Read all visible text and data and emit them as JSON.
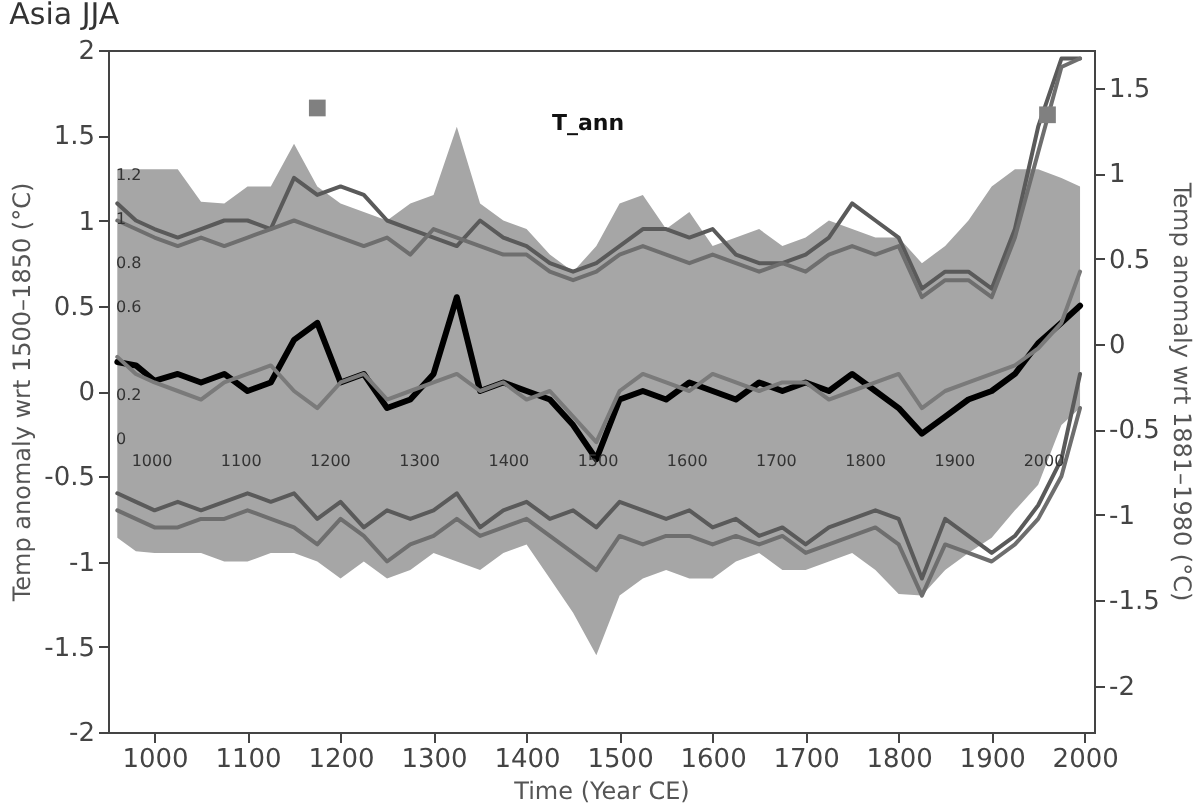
{
  "chart_data": {
    "type": "line",
    "title": "Asia JJA",
    "xlabel": "Time (Year CE)",
    "ylabel": "Temp anomaly wrt 1500–1850 (°C)",
    "y2label": "Temp anomaly wrt 1881–1980 (°C)",
    "xlim": [
      950,
      2010
    ],
    "ylim": [
      -2,
      2
    ],
    "y2lim": [
      -2.27,
      1.72
    ],
    "xticks": [
      1000,
      1100,
      1200,
      1300,
      1400,
      1500,
      1600,
      1700,
      1800,
      1900,
      2000
    ],
    "yticks": [
      -2,
      -1.5,
      -1,
      -0.5,
      0,
      0.5,
      1,
      1.5,
      2
    ],
    "y2ticks": [
      -2,
      -1.5,
      -1,
      -0.5,
      0,
      0.5,
      1,
      1.5
    ],
    "grid": false,
    "line_style": "solid",
    "x": [
      960,
      980,
      1000,
      1025,
      1050,
      1075,
      1100,
      1125,
      1150,
      1175,
      1200,
      1225,
      1250,
      1275,
      1300,
      1325,
      1350,
      1375,
      1400,
      1425,
      1450,
      1475,
      1500,
      1525,
      1550,
      1575,
      1600,
      1625,
      1650,
      1675,
      1700,
      1725,
      1750,
      1775,
      1800,
      1825,
      1850,
      1875,
      1900,
      1925,
      1950,
      1975,
      1995
    ],
    "series": [
      {
        "color": "#000000",
        "values": [
          0.17,
          0.15,
          0.06,
          0.1,
          0.05,
          0.1,
          0.0,
          0.05,
          0.3,
          0.4,
          0.05,
          0.1,
          -0.1,
          -0.05,
          0.1,
          0.55,
          0.0,
          0.05,
          0.0,
          -0.05,
          -0.2,
          -0.4,
          -0.05,
          0.0,
          -0.05,
          0.05,
          0.0,
          -0.05,
          0.05,
          0.0,
          0.05,
          0.0,
          0.1,
          0.0,
          -0.1,
          -0.25,
          -0.15,
          -0.05,
          0.0,
          0.1,
          0.28,
          0.4,
          0.5
        ],
        "upper": [
          1.3,
          1.3,
          1.3,
          1.3,
          1.11,
          1.1,
          1.2,
          1.2,
          1.45,
          1.2,
          1.1,
          1.05,
          1.0,
          1.1,
          1.15,
          1.55,
          1.1,
          1.0,
          0.95,
          0.8,
          0.7,
          0.85,
          1.1,
          1.15,
          0.95,
          1.05,
          0.85,
          0.9,
          0.95,
          0.85,
          0.9,
          1.0,
          0.95,
          0.9,
          0.9,
          0.75,
          0.85,
          1.0,
          1.2,
          1.3,
          1.3,
          1.25,
          1.2
        ],
        "lower": [
          -0.86,
          -0.94,
          -0.95,
          -0.95,
          -0.95,
          -1.0,
          -1.0,
          -0.95,
          -0.95,
          -1.0,
          -1.1,
          -1.0,
          -1.1,
          -1.05,
          -0.95,
          -1.0,
          -1.05,
          -0.95,
          -0.9,
          -1.1,
          -1.3,
          -1.55,
          -1.2,
          -1.1,
          -1.05,
          -1.1,
          -1.1,
          -1.0,
          -0.95,
          -1.05,
          -1.05,
          -1.0,
          -0.95,
          -1.05,
          -1.19,
          -1.2,
          -1.05,
          -0.95,
          -0.86,
          -0.7,
          -0.55,
          -0.2,
          -0.1
        ]
      },
      {
        "color": "#5a5a5a",
        "values": [
          1.1,
          1.0,
          0.95,
          0.9,
          0.95,
          1.0,
          1.0,
          0.95,
          1.25,
          1.15,
          1.2,
          1.15,
          1.0,
          0.95,
          0.9,
          0.85,
          1.0,
          0.9,
          0.85,
          0.75,
          0.7,
          0.75,
          0.85,
          0.95,
          0.95,
          0.9,
          0.95,
          0.8,
          0.75,
          0.75,
          0.8,
          0.9,
          1.1,
          1.0,
          0.9,
          0.6,
          0.7,
          0.7,
          0.6,
          0.95,
          1.55,
          1.95,
          1.95
        ]
      },
      {
        "color": "#6e6e6e",
        "values": [
          1.0,
          0.95,
          0.9,
          0.85,
          0.9,
          0.85,
          0.9,
          0.95,
          1.0,
          0.95,
          0.9,
          0.85,
          0.9,
          0.8,
          0.95,
          0.9,
          0.85,
          0.8,
          0.8,
          0.7,
          0.65,
          0.7,
          0.8,
          0.85,
          0.8,
          0.75,
          0.8,
          0.75,
          0.7,
          0.75,
          0.7,
          0.8,
          0.85,
          0.8,
          0.85,
          0.55,
          0.65,
          0.65,
          0.55,
          0.9,
          1.4,
          1.9,
          1.95
        ]
      },
      {
        "color": "#5a5a5a",
        "values": [
          -0.6,
          -0.65,
          -0.7,
          -0.65,
          -0.7,
          -0.65,
          -0.6,
          -0.65,
          -0.6,
          -0.75,
          -0.65,
          -0.8,
          -0.7,
          -0.75,
          -0.7,
          -0.6,
          -0.8,
          -0.7,
          -0.65,
          -0.75,
          -0.7,
          -0.8,
          -0.65,
          -0.7,
          -0.75,
          -0.7,
          -0.8,
          -0.75,
          -0.85,
          -0.8,
          -0.9,
          -0.8,
          -0.75,
          -0.7,
          -0.75,
          -1.1,
          -0.75,
          -0.85,
          -0.95,
          -0.85,
          -0.67,
          -0.4,
          0.1
        ]
      },
      {
        "color": "#6e6e6e",
        "values": [
          -0.7,
          -0.75,
          -0.8,
          -0.8,
          -0.75,
          -0.75,
          -0.7,
          -0.75,
          -0.8,
          -0.9,
          -0.75,
          -0.85,
          -1.0,
          -0.9,
          -0.85,
          -0.75,
          -0.85,
          -0.8,
          -0.75,
          -0.85,
          -0.95,
          -1.05,
          -0.85,
          -0.9,
          -0.85,
          -0.85,
          -0.9,
          -0.85,
          -0.9,
          -0.85,
          -0.95,
          -0.9,
          -0.85,
          -0.8,
          -0.9,
          -1.2,
          -0.9,
          -0.95,
          -1.0,
          -0.9,
          -0.75,
          -0.5,
          -0.1
        ]
      },
      {
        "color": "#7a7a7a",
        "values": [
          0.2,
          0.1,
          0.05,
          0.0,
          -0.05,
          0.05,
          0.1,
          0.15,
          0.0,
          -0.1,
          0.05,
          0.1,
          -0.05,
          0.0,
          0.05,
          0.1,
          0.0,
          0.05,
          -0.05,
          0.0,
          -0.15,
          -0.3,
          0.0,
          0.1,
          0.05,
          0.0,
          0.1,
          0.05,
          0.0,
          0.05,
          0.05,
          -0.05,
          0.0,
          0.05,
          0.1,
          -0.1,
          0.0,
          0.05,
          0.1,
          0.15,
          0.25,
          0.4,
          0.7
        ]
      },
      {
        "type": "scatter",
        "marker": "square",
        "color": "#808080",
        "x": [
          1175,
          1960
        ],
        "values": [
          1.66,
          1.62
        ]
      }
    ],
    "annotations": [
      "T_ann",
      "1.2",
      "1",
      "0.8",
      "0.6",
      "0.2",
      "0",
      "1000",
      "1100",
      "1200",
      "1300",
      "1400",
      "1500",
      "1600",
      "1700",
      "1800",
      "1900",
      "2000"
    ]
  }
}
